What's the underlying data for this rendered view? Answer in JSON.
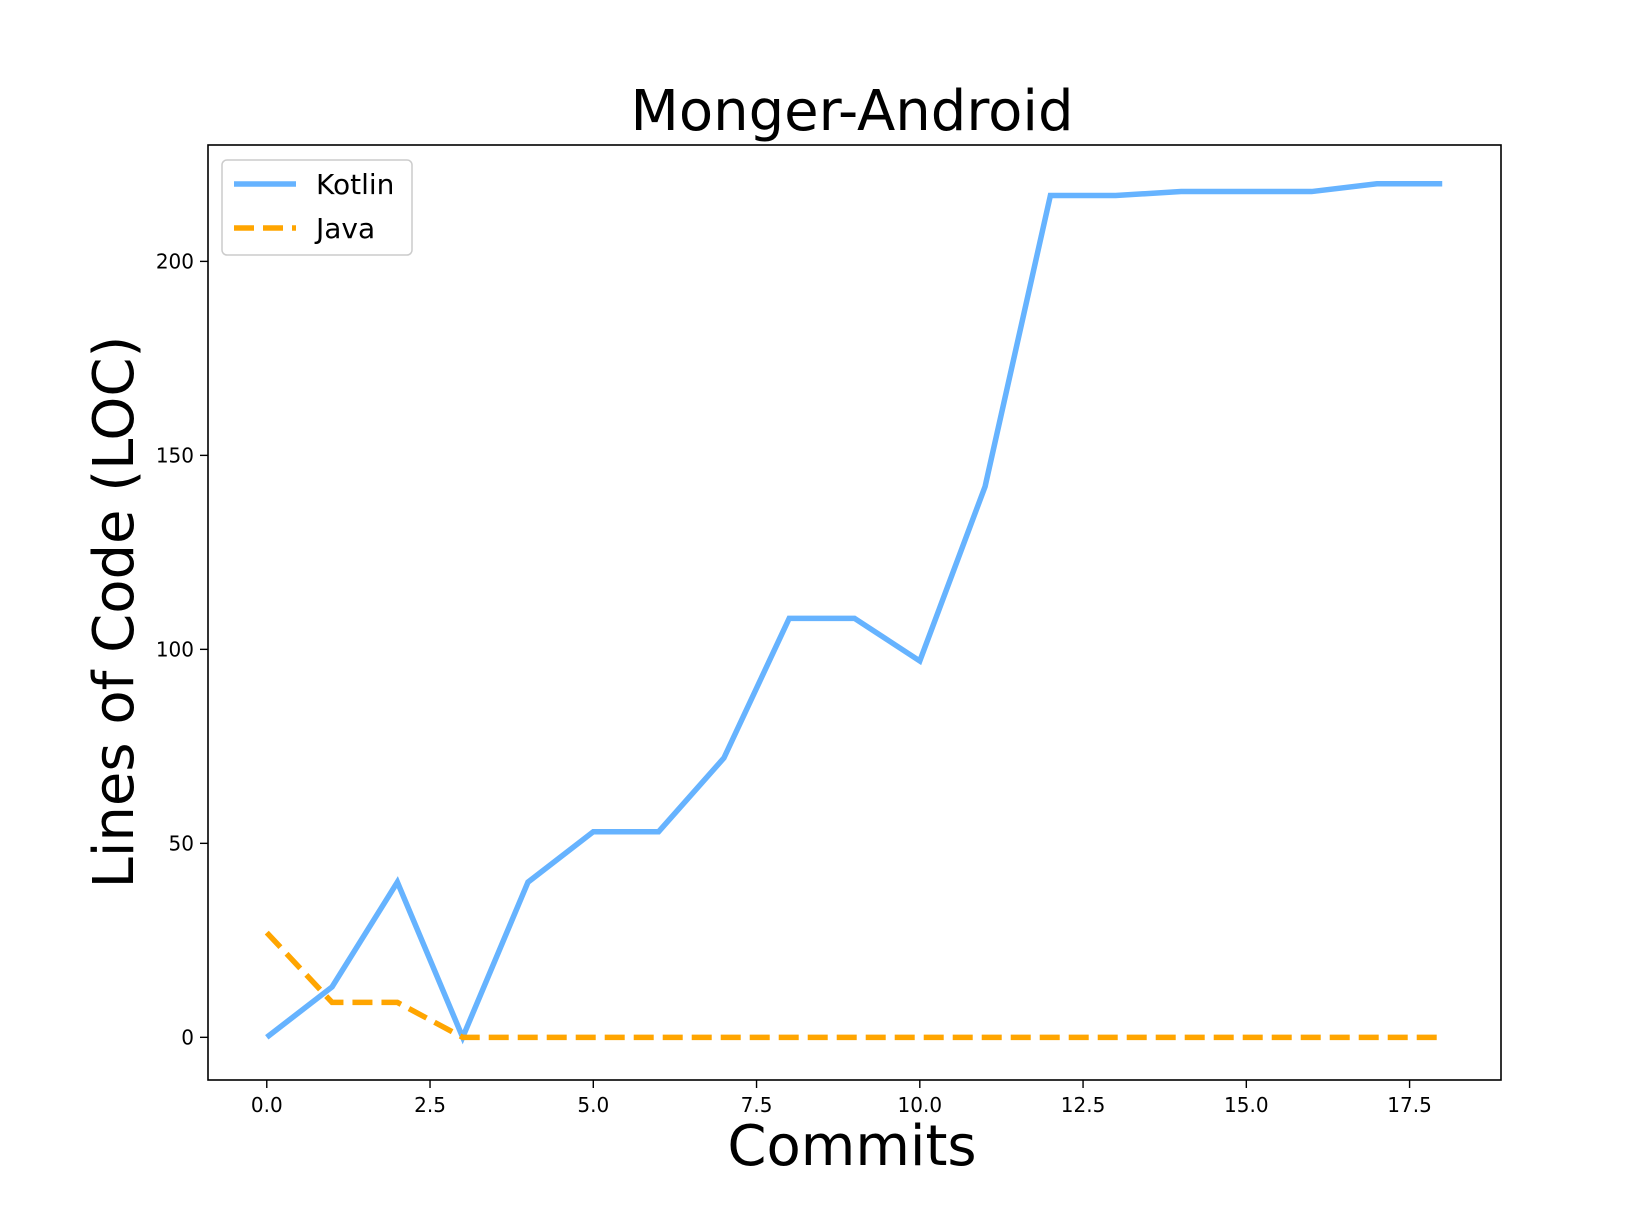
{
  "chart_data": {
    "type": "line",
    "title": "Monger-Android",
    "xlabel": "Commits",
    "ylabel": "Lines of Code (LOC)",
    "xlim": [
      -0.9,
      18.9
    ],
    "ylim": [
      -11,
      230
    ],
    "xticks": [
      0.0,
      2.5,
      5.0,
      7.5,
      10.0,
      12.5,
      15.0,
      17.5
    ],
    "xtick_labels": [
      "0.0",
      "2.5",
      "5.0",
      "7.5",
      "10.0",
      "12.5",
      "15.0",
      "17.5"
    ],
    "yticks": [
      0,
      50,
      100,
      150,
      200
    ],
    "ytick_labels": [
      "0",
      "50",
      "100",
      "150",
      "200"
    ],
    "grid": false,
    "legend_position": "top-left",
    "x": [
      0,
      1,
      2,
      3,
      4,
      5,
      6,
      7,
      8,
      9,
      10,
      11,
      12,
      13,
      14,
      15,
      16,
      17,
      18
    ],
    "series": [
      {
        "name": "Kotlin",
        "color": "#66b3ff",
        "line_style": "solid",
        "values": [
          0,
          13,
          40,
          0,
          40,
          53,
          53,
          72,
          108,
          108,
          97,
          142,
          217,
          217,
          218,
          218,
          218,
          220,
          220
        ]
      },
      {
        "name": "Java",
        "color": "#ffa500",
        "line_style": "dashed",
        "values": [
          27,
          9,
          9,
          0,
          0,
          0,
          0,
          0,
          0,
          0,
          0,
          0,
          0,
          0,
          0,
          0,
          0,
          0,
          0
        ]
      }
    ]
  }
}
